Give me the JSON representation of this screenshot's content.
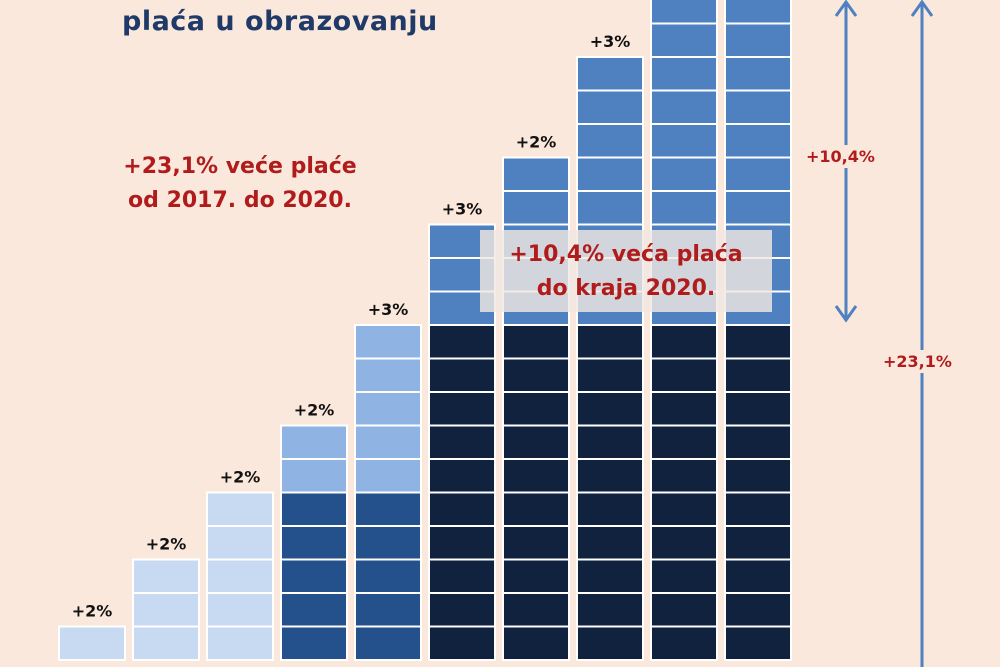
{
  "title": "plaća u obrazovanju",
  "notes": {
    "left_line1": "+23,1% veće plaće",
    "left_line2": "od 2017. do 2020.",
    "right_line1": "+10,4% veća plaća",
    "right_line2": "do kraja 2020."
  },
  "arrows": {
    "short_label": "+10,4%",
    "long_label": "+23,1%"
  },
  "colors": {
    "background": "#fbe8dc",
    "level_1": "#c8daf1",
    "level_2": "#8fb4e3",
    "level_3": "#24518b",
    "level_4": "#4f80bf",
    "level_base": "#11223f",
    "red_text": "#b01c1c",
    "title": "#1f3a68",
    "arrow": "#4f80bf"
  },
  "chart_data": {
    "type": "bar",
    "title": "plaća u obrazovanju",
    "data_labels": [
      "+2%",
      "+2%",
      "+2%",
      "+2%",
      "+3%",
      "+3%",
      "+2%",
      "+3%",
      "",
      ""
    ],
    "values": [
      2,
      2,
      2,
      2,
      3,
      3,
      2,
      3,
      null,
      null
    ],
    "bar_stack_units": [
      1,
      3,
      5,
      7,
      10,
      13,
      15,
      18,
      21,
      21
    ]
  }
}
